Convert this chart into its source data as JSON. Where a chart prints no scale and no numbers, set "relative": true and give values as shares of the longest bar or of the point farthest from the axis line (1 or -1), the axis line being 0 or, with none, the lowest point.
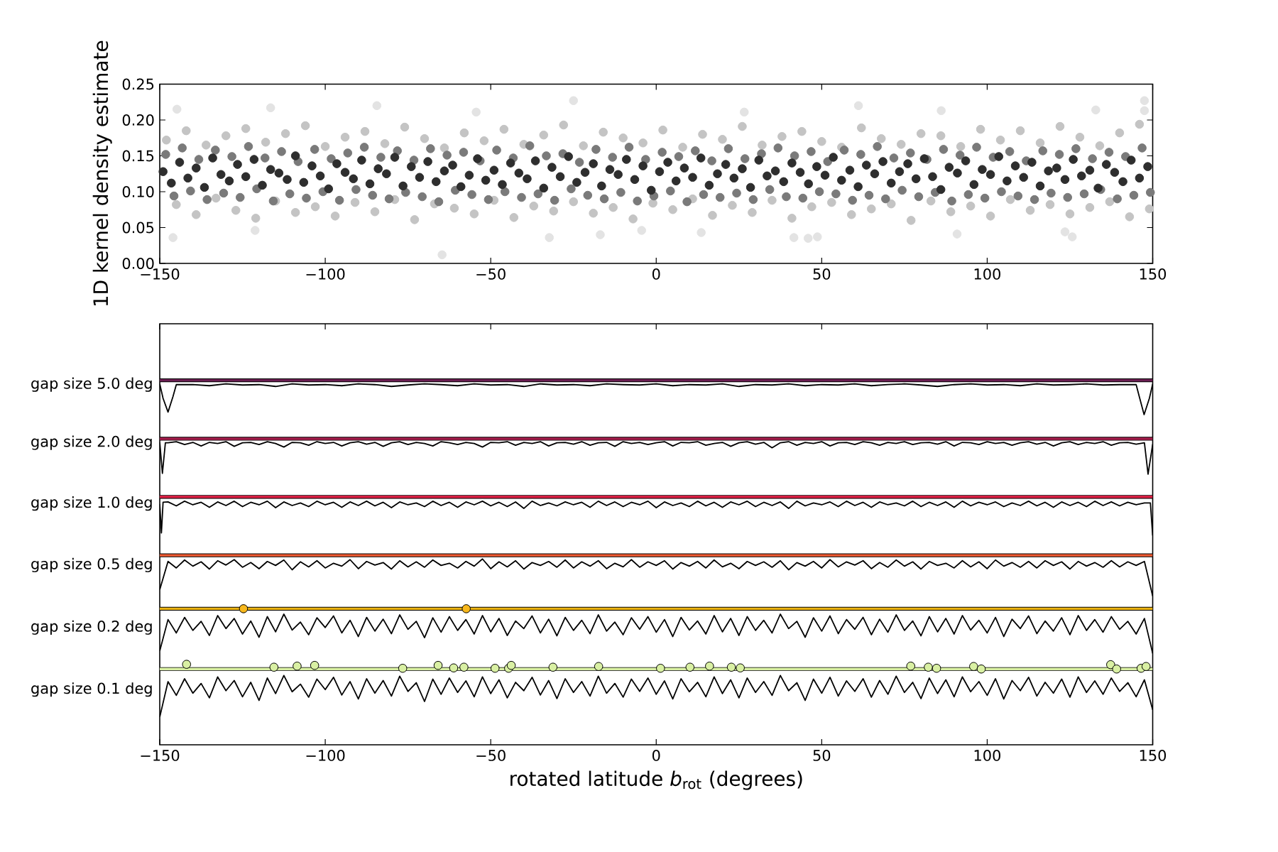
{
  "chart_data": [
    {
      "type": "scatter",
      "ylabel": "1D kernel density estimate",
      "xlim": [
        -150,
        150
      ],
      "xticks": [
        {
          "value": -150,
          "label": "−150"
        },
        {
          "value": -100,
          "label": "−100"
        },
        {
          "value": -50,
          "label": "−50"
        },
        0,
        50,
        100,
        150
      ],
      "ylim": [
        0,
        0.25
      ],
      "yticks": [
        {
          "value": 0,
          "label": "0.00"
        },
        {
          "value": 0.05,
          "label": "0.05"
        },
        {
          "value": 0.1,
          "label": "0.10"
        },
        {
          "value": 0.15,
          "label": "0.15"
        },
        {
          "value": 0.2,
          "label": "0.20"
        },
        {
          "value": 0.25,
          "label": "0.25"
        }
      ],
      "marker": "circle",
      "series": [
        {
          "color": "#e3e3e3",
          "x": [
            -144.8,
            -146,
            -116.5,
            -84.4,
            -64.7,
            -25,
            -32.3,
            -54.4,
            -121.2,
            -16.9,
            61.1,
            147.5,
            147.5,
            132.8,
            86.1,
            41.6,
            45.9,
            48.7,
            125.7,
            123.5,
            13.6,
            -4.4,
            26.6,
            90.9
          ],
          "values": [
            0.215,
            0.036,
            0.217,
            0.22,
            0.012,
            0.227,
            0.036,
            0.211,
            0.046,
            0.04,
            0.22,
            0.227,
            0.213,
            0.214,
            0.213,
            0.036,
            0.035,
            0.037,
            0.037,
            0.044,
            0.043,
            0.046,
            0.211,
            0.041
          ]
        },
        {
          "color": "#c4c4c4",
          "x": [
            -148,
            -145,
            -142,
            -139,
            -136,
            -133,
            -130,
            -127,
            -124,
            -121,
            -118,
            -115,
            -112,
            -109,
            -106,
            -103,
            -100,
            -97,
            -94,
            -91,
            -88,
            -85,
            -82,
            -79,
            -76,
            -73,
            -70,
            -67,
            -64,
            -61,
            -58,
            -55,
            -52,
            -49,
            -46,
            -43,
            -40,
            -37,
            -34,
            -31,
            -28,
            -25,
            -22,
            -19,
            -16,
            -13,
            -10,
            -7,
            -4,
            -1,
            2,
            5,
            8,
            11,
            14,
            17,
            20,
            23,
            26,
            29,
            32,
            35,
            38,
            41,
            44,
            47,
            50,
            53,
            56,
            59,
            62,
            65,
            68,
            71,
            74,
            77,
            80,
            83,
            86,
            89,
            92,
            95,
            98,
            101,
            104,
            107,
            110,
            113,
            116,
            119,
            122,
            125,
            128,
            131,
            134,
            137,
            140,
            143,
            146,
            149
          ],
          "values": [
            0.172,
            0.082,
            0.185,
            0.068,
            0.165,
            0.091,
            0.178,
            0.074,
            0.188,
            0.063,
            0.169,
            0.087,
            0.181,
            0.071,
            0.192,
            0.079,
            0.163,
            0.066,
            0.176,
            0.085,
            0.184,
            0.072,
            0.167,
            0.089,
            0.19,
            0.061,
            0.174,
            0.083,
            0.161,
            0.077,
            0.182,
            0.069,
            0.171,
            0.088,
            0.187,
            0.064,
            0.166,
            0.08,
            0.179,
            0.073,
            0.193,
            0.086,
            0.164,
            0.07,
            0.183,
            0.078,
            0.175,
            0.062,
            0.168,
            0.084,
            0.186,
            0.075,
            0.162,
            0.09,
            0.18,
            0.067,
            0.173,
            0.081,
            0.191,
            0.071,
            0.165,
            0.088,
            0.177,
            0.063,
            0.184,
            0.079,
            0.17,
            0.085,
            0.162,
            0.068,
            0.189,
            0.076,
            0.174,
            0.083,
            0.166,
            0.06,
            0.181,
            0.087,
            0.178,
            0.072,
            0.163,
            0.08,
            0.187,
            0.066,
            0.172,
            0.089,
            0.185,
            0.074,
            0.168,
            0.082,
            0.191,
            0.069,
            0.176,
            0.078,
            0.164,
            0.086,
            0.182,
            0.065,
            0.194,
            0.076
          ]
        },
        {
          "color": "#7a7a7a",
          "x": [
            -148.2,
            -145.7,
            -143.2,
            -140.7,
            -138.2,
            -135.7,
            -133.2,
            -130.7,
            -128.2,
            -125.7,
            -123.2,
            -120.7,
            -118.2,
            -115.7,
            -113.2,
            -110.7,
            -108.2,
            -105.7,
            -103.2,
            -100.7,
            -98.2,
            -95.7,
            -93.2,
            -90.7,
            -88.2,
            -85.7,
            -83.2,
            -80.7,
            -78.2,
            -75.7,
            -73.2,
            -70.7,
            -68.2,
            -65.7,
            -63.2,
            -60.7,
            -58.2,
            -55.7,
            -53.2,
            -50.7,
            -48.2,
            -45.7,
            -43.2,
            -40.7,
            -38.2,
            -35.7,
            -33.2,
            -30.7,
            -28.2,
            -25.7,
            -23.2,
            -20.7,
            -18.2,
            -15.7,
            -13.2,
            -10.7,
            -8.2,
            -5.7,
            -3.2,
            -0.7,
            1.8,
            4.3,
            6.8,
            9.3,
            11.8,
            14.3,
            16.8,
            19.3,
            21.8,
            24.3,
            26.8,
            29.3,
            31.8,
            34.3,
            36.8,
            39.3,
            41.8,
            44.3,
            46.8,
            49.3,
            51.8,
            54.3,
            56.8,
            59.3,
            61.8,
            64.3,
            66.8,
            69.3,
            71.8,
            74.3,
            76.8,
            79.3,
            81.8,
            84.3,
            86.8,
            89.3,
            91.8,
            94.3,
            96.8,
            99.3,
            101.8,
            104.3,
            106.8,
            109.3,
            111.8,
            114.3,
            116.8,
            119.3,
            121.8,
            124.3,
            126.8,
            129.3,
            131.8,
            134.3,
            136.8,
            139.3,
            141.8,
            144.3,
            146.8,
            149.3
          ],
          "values": [
            0.152,
            0.094,
            0.161,
            0.101,
            0.145,
            0.089,
            0.158,
            0.098,
            0.149,
            0.092,
            0.163,
            0.104,
            0.147,
            0.087,
            0.156,
            0.097,
            0.142,
            0.091,
            0.159,
            0.1,
            0.146,
            0.088,
            0.154,
            0.103,
            0.162,
            0.095,
            0.148,
            0.09,
            0.157,
            0.099,
            0.144,
            0.093,
            0.16,
            0.086,
            0.151,
            0.102,
            0.155,
            0.096,
            0.143,
            0.089,
            0.158,
            0.1,
            0.147,
            0.092,
            0.164,
            0.097,
            0.15,
            0.088,
            0.153,
            0.104,
            0.141,
            0.095,
            0.159,
            0.09,
            0.148,
            0.099,
            0.162,
            0.087,
            0.145,
            0.094,
            0.155,
            0.101,
            0.149,
            0.086,
            0.157,
            0.096,
            0.143,
            0.092,
            0.16,
            0.098,
            0.146,
            0.089,
            0.153,
            0.103,
            0.161,
            0.093,
            0.15,
            0.091,
            0.156,
            0.1,
            0.142,
            0.097,
            0.158,
            0.088,
            0.152,
            0.095,
            0.163,
            0.09,
            0.147,
            0.102,
            0.154,
            0.093,
            0.145,
            0.099,
            0.159,
            0.087,
            0.151,
            0.096,
            0.162,
            0.091,
            0.148,
            0.1,
            0.156,
            0.094,
            0.143,
            0.089,
            0.157,
            0.098,
            0.152,
            0.092,
            0.16,
            0.097,
            0.146,
            0.103,
            0.155,
            0.09,
            0.149,
            0.095,
            0.161,
            0.099
          ]
        },
        {
          "color": "#2e2e2e",
          "x": [
            -149,
            -146.5,
            -144,
            -141.5,
            -139,
            -136.5,
            -134,
            -131.5,
            -129,
            -126.5,
            -124,
            -121.5,
            -119,
            -116.5,
            -114,
            -111.5,
            -109,
            -106.5,
            -104,
            -101.5,
            -99,
            -96.5,
            -94,
            -91.5,
            -89,
            -86.5,
            -84,
            -81.5,
            -79,
            -76.5,
            -74,
            -71.5,
            -69,
            -66.5,
            -64,
            -61.5,
            -59,
            -56.5,
            -54,
            -51.5,
            -49,
            -46.5,
            -44,
            -41.5,
            -39,
            -36.5,
            -34,
            -31.5,
            -29,
            -26.5,
            -24,
            -21.5,
            -19,
            -16.5,
            -14,
            -11.5,
            -9,
            -6.5,
            -4,
            -1.5,
            1,
            3.5,
            6,
            8.5,
            11,
            13.5,
            16,
            18.5,
            21,
            23.5,
            26,
            28.5,
            31,
            33.5,
            36,
            38.5,
            41,
            43.5,
            46,
            48.5,
            51,
            53.5,
            56,
            58.5,
            61,
            63.5,
            66,
            68.5,
            71,
            73.5,
            76,
            78.5,
            81,
            83.5,
            86,
            88.5,
            91,
            93.5,
            96,
            98.5,
            101,
            103.5,
            106,
            108.5,
            111,
            113.5,
            116,
            118.5,
            121,
            123.5,
            126,
            128.5,
            131,
            133.5,
            136,
            138.5,
            141,
            143.5,
            146,
            148.5
          ],
          "values": [
            0.128,
            0.112,
            0.141,
            0.119,
            0.133,
            0.106,
            0.147,
            0.124,
            0.115,
            0.138,
            0.121,
            0.145,
            0.109,
            0.131,
            0.126,
            0.117,
            0.15,
            0.113,
            0.136,
            0.122,
            0.104,
            0.139,
            0.127,
            0.118,
            0.144,
            0.111,
            0.132,
            0.125,
            0.148,
            0.108,
            0.135,
            0.12,
            0.142,
            0.114,
            0.129,
            0.137,
            0.107,
            0.123,
            0.146,
            0.116,
            0.13,
            0.11,
            0.14,
            0.126,
            0.118,
            0.143,
            0.105,
            0.134,
            0.121,
            0.149,
            0.113,
            0.127,
            0.139,
            0.108,
            0.131,
            0.124,
            0.145,
            0.117,
            0.136,
            0.102,
            0.128,
            0.141,
            0.115,
            0.133,
            0.12,
            0.147,
            0.109,
            0.125,
            0.138,
            0.119,
            0.132,
            0.106,
            0.144,
            0.122,
            0.129,
            0.114,
            0.14,
            0.127,
            0.111,
            0.135,
            0.123,
            0.148,
            0.116,
            0.13,
            0.107,
            0.137,
            0.125,
            0.142,
            0.112,
            0.128,
            0.139,
            0.118,
            0.146,
            0.121,
            0.103,
            0.134,
            0.126,
            0.143,
            0.11,
            0.131,
            0.124,
            0.149,
            0.115,
            0.136,
            0.12,
            0.141,
            0.108,
            0.129,
            0.133,
            0.117,
            0.145,
            0.122,
            0.13,
            0.105,
            0.138,
            0.127,
            0.114,
            0.144,
            0.119,
            0.135
          ]
        }
      ]
    },
    {
      "type": "line",
      "relative": true,
      "xlabel": "rotated latitude *b*$_{rot}$ (degrees)",
      "xlim": [
        -150,
        150
      ],
      "xticks": [
        {
          "value": -150,
          "label": "−150"
        },
        {
          "value": -100,
          "label": "−100"
        },
        {
          "value": -50,
          "label": "−50"
        },
        0,
        50,
        100,
        150
      ],
      "line_style": "solid",
      "marker": "none",
      "x": [
        -150,
        -147.5,
        -145,
        -142.5,
        -140,
        -137.5,
        -135,
        -132.5,
        -130,
        -127.5,
        -125,
        -122.5,
        -120,
        -117.5,
        -115,
        -112.5,
        -110,
        -107.5,
        -105,
        -102.5,
        -100,
        -97.5,
        -95,
        -92.5,
        -90,
        -87.5,
        -85,
        -82.5,
        -80,
        -77.5,
        -75,
        -72.5,
        -70,
        -67.5,
        -65,
        -62.5,
        -60,
        -57.5,
        -55,
        -52.5,
        -50,
        -47.5,
        -45,
        -42.5,
        -40,
        -37.5,
        -35,
        -32.5,
        -30,
        -27.5,
        -25,
        -22.5,
        -20,
        -17.5,
        -15,
        -12.5,
        -10,
        -7.5,
        -5,
        -2.5,
        0,
        2.5,
        5,
        7.5,
        10,
        12.5,
        15,
        17.5,
        20,
        22.5,
        25,
        27.5,
        30,
        32.5,
        35,
        37.5,
        40,
        42.5,
        45,
        47.5,
        50,
        52.5,
        55,
        57.5,
        60,
        62.5,
        65,
        67.5,
        70,
        72.5,
        75,
        77.5,
        80,
        82.5,
        85,
        87.5,
        90,
        92.5,
        95,
        97.5,
        100,
        102.5,
        105,
        107.5,
        110,
        112.5,
        115,
        117.5,
        120,
        122.5,
        125,
        127.5,
        130,
        132.5,
        135,
        137.5,
        140,
        142.5,
        145,
        147.5,
        150
      ],
      "ref_lines": [
        {
          "axis": "y",
          "value": 1.01,
          "color": "#6b1f52"
        },
        {
          "axis": "y",
          "value": 0.848,
          "color": "#a31c4a"
        },
        {
          "axis": "y",
          "value": 0.687,
          "color": "#d81e42"
        },
        {
          "axis": "y",
          "value": 0.525,
          "color": "#ef5a32"
        },
        {
          "axis": "y",
          "value": 0.377,
          "color": "#ebb212"
        },
        {
          "axis": "y",
          "value": 0.21,
          "color": "#d9f0a3"
        }
      ],
      "series": [
        {
          "name": "gap size 5.0 deg",
          "color": "#000000",
          "x": [
            -150,
            -149,
            -147.5,
            -146,
            -145,
            -140,
            -135,
            -130,
            -125,
            -120,
            -115,
            -110,
            -105,
            -100,
            -95,
            -90,
            -85,
            -80,
            -75,
            -70,
            -65,
            -60,
            -55,
            -50,
            -45,
            -40,
            -35,
            -30,
            -25,
            -20,
            -15,
            -10,
            -5,
            0,
            5,
            10,
            15,
            20,
            25,
            30,
            35,
            40,
            45,
            50,
            55,
            60,
            65,
            70,
            75,
            80,
            85,
            90,
            95,
            100,
            105,
            110,
            115,
            120,
            125,
            130,
            135,
            140,
            145,
            146,
            147.4,
            149,
            150
          ],
          "values": [
            1.0,
            0.96,
            0.922,
            0.965,
            0.998,
            0.998,
            0.995,
            1.0,
            0.997,
            0.998,
            0.993,
            1.0,
            0.997,
            0.998,
            0.995,
            1.0,
            0.998,
            0.993,
            0.997,
            1.0,
            0.998,
            0.995,
            1.0,
            0.997,
            0.998,
            0.993,
            1.0,
            0.997,
            0.998,
            0.995,
            1.0,
            0.998,
            0.997,
            1.0,
            0.995,
            0.998,
            0.997,
            1.0,
            0.993,
            0.998,
            0.997,
            1.0,
            0.995,
            0.998,
            0.997,
            1.0,
            0.995,
            0.998,
            1.0,
            0.997,
            0.993,
            0.998,
            1.0,
            0.997,
            0.998,
            0.995,
            1.0,
            0.997,
            0.998,
            1.0,
            0.997,
            0.998,
            0.998,
            0.963,
            0.915,
            0.96,
            1.0
          ]
        },
        {
          "name": "gap size 2.0 deg",
          "color": "#000000",
          "x": [
            -150,
            -149.2,
            -148.3,
            -147.5,
            -145,
            -142.5,
            -140,
            -137.5,
            -135,
            -132.5,
            -130,
            -127.5,
            -125,
            -122.5,
            -120,
            -117.5,
            -115,
            -112.5,
            -110,
            -107.5,
            -105,
            -102.5,
            -100,
            -97.5,
            -95,
            -92.5,
            -90,
            -87.5,
            -85,
            -82.5,
            -80,
            -77.5,
            -75,
            -72.5,
            -70,
            -67.5,
            -65,
            -62.5,
            -60,
            -57.5,
            -55,
            -52.5,
            -50,
            -47.5,
            -45,
            -42.5,
            -40,
            -37.5,
            -35,
            -32.5,
            -30,
            -27.5,
            -25,
            -22.5,
            -20,
            -17.5,
            -15,
            -12.5,
            -10,
            -7.5,
            -5,
            -2.5,
            0,
            2.5,
            5,
            7.5,
            10,
            12.5,
            15,
            17.5,
            20,
            22.5,
            25,
            27.5,
            30,
            32.5,
            35,
            37.5,
            40,
            42.5,
            45,
            47.5,
            50,
            52.5,
            55,
            57.5,
            60,
            62.5,
            65,
            67.5,
            70,
            72.5,
            75,
            77.5,
            80,
            82.5,
            85,
            87.5,
            90,
            92.5,
            95,
            97.5,
            100,
            102.5,
            105,
            107.5,
            110,
            112.5,
            115,
            117.5,
            120,
            122.5,
            125,
            127.5,
            130,
            132.5,
            135,
            137.5,
            140,
            142.5,
            145,
            147.5,
            148.6,
            150
          ],
          "values": [
            0.838,
            0.752,
            0.837,
            0.837,
            0.84,
            0.832,
            0.838,
            0.828,
            0.838,
            0.835,
            0.84,
            0.827,
            0.837,
            0.838,
            0.832,
            0.84,
            0.835,
            0.825,
            0.838,
            0.837,
            0.83,
            0.84,
            0.835,
            0.838,
            0.828,
            0.837,
            0.84,
            0.833,
            0.838,
            0.827,
            0.837,
            0.84,
            0.832,
            0.838,
            0.835,
            0.828,
            0.84,
            0.837,
            0.832,
            0.838,
            0.835,
            0.825,
            0.838,
            0.837,
            0.84,
            0.83,
            0.838,
            0.835,
            0.84,
            0.828,
            0.837,
            0.838,
            0.833,
            0.84,
            0.83,
            0.837,
            0.838,
            0.827,
            0.84,
            0.835,
            0.838,
            0.832,
            0.837,
            0.84,
            0.828,
            0.838,
            0.837,
            0.84,
            0.83,
            0.835,
            0.838,
            0.827,
            0.837,
            0.84,
            0.833,
            0.838,
            0.823,
            0.837,
            0.84,
            0.83,
            0.838,
            0.835,
            0.84,
            0.828,
            0.837,
            0.838,
            0.832,
            0.84,
            0.837,
            0.83,
            0.838,
            0.835,
            0.84,
            0.832,
            0.837,
            0.838,
            0.833,
            0.84,
            0.828,
            0.838,
            0.837,
            0.832,
            0.84,
            0.835,
            0.838,
            0.83,
            0.837,
            0.84,
            0.833,
            0.838,
            0.828,
            0.837,
            0.84,
            0.832,
            0.838,
            0.835,
            0.84,
            0.83,
            0.837,
            0.838,
            0.833,
            0.837,
            0.75,
            0.833
          ]
        },
        {
          "name": "gap size 1.0 deg",
          "color": "#000000",
          "x": [
            -150,
            -149.5,
            -149,
            -147.5,
            -145,
            -142.5,
            -140,
            -137.5,
            -135,
            -132.5,
            -130,
            -127.5,
            -125,
            -122.5,
            -120,
            -117.5,
            -115,
            -112.5,
            -110,
            -107.5,
            -105,
            -102.5,
            -100,
            -97.5,
            -95,
            -92.5,
            -90,
            -87.5,
            -85,
            -82.5,
            -80,
            -77.5,
            -75,
            -72.5,
            -70,
            -67.5,
            -65,
            -62.5,
            -60,
            -57.5,
            -55,
            -52.5,
            -50,
            -47.5,
            -45,
            -42.5,
            -40,
            -37.5,
            -35,
            -32.5,
            -30,
            -27.5,
            -25,
            -22.5,
            -20,
            -17.5,
            -15,
            -12.5,
            -10,
            -7.5,
            -5,
            -2.5,
            0,
            2.5,
            5,
            7.5,
            10,
            12.5,
            15,
            17.5,
            20,
            22.5,
            25,
            27.5,
            30,
            32.5,
            35,
            37.5,
            40,
            42.5,
            45,
            47.5,
            50,
            52.5,
            55,
            57.5,
            60,
            62.5,
            65,
            67.5,
            70,
            72.5,
            75,
            77.5,
            80,
            82.5,
            85,
            87.5,
            90,
            92.5,
            95,
            97.5,
            100,
            102.5,
            105,
            107.5,
            110,
            112.5,
            115,
            117.5,
            120,
            122.5,
            125,
            127.5,
            130,
            132.5,
            135,
            137.5,
            140,
            142.5,
            145,
            147.5,
            149.3,
            150
          ],
          "values": [
            0.667,
            0.587,
            0.672,
            0.673,
            0.662,
            0.675,
            0.665,
            0.672,
            0.658,
            0.673,
            0.663,
            0.675,
            0.66,
            0.672,
            0.665,
            0.675,
            0.657,
            0.673,
            0.663,
            0.67,
            0.66,
            0.675,
            0.665,
            0.672,
            0.658,
            0.673,
            0.663,
            0.675,
            0.662,
            0.672,
            0.657,
            0.673,
            0.665,
            0.67,
            0.66,
            0.675,
            0.663,
            0.672,
            0.658,
            0.673,
            0.665,
            0.675,
            0.662,
            0.672,
            0.66,
            0.673,
            0.655,
            0.675,
            0.663,
            0.67,
            0.662,
            0.673,
            0.665,
            0.672,
            0.658,
            0.675,
            0.663,
            0.673,
            0.66,
            0.672,
            0.665,
            0.675,
            0.657,
            0.673,
            0.663,
            0.67,
            0.66,
            0.675,
            0.662,
            0.672,
            0.658,
            0.673,
            0.665,
            0.675,
            0.66,
            0.672,
            0.663,
            0.673,
            0.655,
            0.675,
            0.662,
            0.67,
            0.665,
            0.673,
            0.66,
            0.675,
            0.663,
            0.672,
            0.658,
            0.673,
            0.665,
            0.67,
            0.662,
            0.675,
            0.66,
            0.672,
            0.663,
            0.673,
            0.658,
            0.675,
            0.662,
            0.672,
            0.665,
            0.673,
            0.66,
            0.67,
            0.663,
            0.675,
            0.662,
            0.672,
            0.658,
            0.673,
            0.663,
            0.672,
            0.66,
            0.675,
            0.663,
            0.673,
            0.662,
            0.672,
            0.665,
            0.67,
            0.67,
            0.58
          ]
        },
        {
          "name": "gap size 0.5 deg",
          "color": "#000000",
          "values": [
            0.43,
            0.508,
            0.49,
            0.512,
            0.495,
            0.507,
            0.487,
            0.51,
            0.498,
            0.513,
            0.492,
            0.505,
            0.488,
            0.508,
            0.497,
            0.512,
            0.485,
            0.507,
            0.493,
            0.51,
            0.49,
            0.503,
            0.495,
            0.513,
            0.488,
            0.508,
            0.498,
            0.505,
            0.487,
            0.51,
            0.493,
            0.507,
            0.492,
            0.512,
            0.497,
            0.503,
            0.49,
            0.508,
            0.495,
            0.515,
            0.488,
            0.507,
            0.493,
            0.51,
            0.487,
            0.505,
            0.497,
            0.508,
            0.492,
            0.512,
            0.49,
            0.507,
            0.495,
            0.51,
            0.488,
            0.503,
            0.493,
            0.513,
            0.492,
            0.507,
            0.497,
            0.51,
            0.487,
            0.505,
            0.495,
            0.508,
            0.49,
            0.512,
            0.493,
            0.503,
            0.488,
            0.508,
            0.497,
            0.507,
            0.492,
            0.51,
            0.485,
            0.505,
            0.495,
            0.508,
            0.49,
            0.513,
            0.493,
            0.507,
            0.498,
            0.51,
            0.488,
            0.505,
            0.492,
            0.512,
            0.495,
            0.507,
            0.487,
            0.508,
            0.497,
            0.503,
            0.49,
            0.51,
            0.493,
            0.507,
            0.488,
            0.512,
            0.495,
            0.505,
            0.492,
            0.508,
            0.49,
            0.51,
            0.497,
            0.507,
            0.487,
            0.508,
            0.495,
            0.505,
            0.492,
            0.51,
            0.493,
            0.507,
            0.497,
            0.508,
            0.412
          ]
        },
        {
          "name": "gap size 0.2 deg",
          "color": "#000000",
          "values": [
            0.26,
            0.347,
            0.31,
            0.353,
            0.317,
            0.342,
            0.303,
            0.358,
            0.322,
            0.35,
            0.307,
            0.343,
            0.298,
            0.355,
            0.313,
            0.362,
            0.318,
            0.34,
            0.305,
            0.352,
            0.325,
            0.357,
            0.31,
            0.345,
            0.3,
            0.353,
            0.315,
            0.348,
            0.308,
            0.36,
            0.32,
            0.342,
            0.297,
            0.352,
            0.312,
            0.355,
            0.317,
            0.347,
            0.307,
            0.358,
            0.313,
            0.35,
            0.303,
            0.343,
            0.322,
            0.357,
            0.31,
            0.348,
            0.302,
            0.353,
            0.317,
            0.345,
            0.308,
            0.36,
            0.315,
            0.34,
            0.305,
            0.352,
            0.32,
            0.355,
            0.312,
            0.347,
            0.3,
            0.353,
            0.318,
            0.343,
            0.307,
            0.358,
            0.313,
            0.35,
            0.303,
            0.355,
            0.317,
            0.345,
            0.31,
            0.362,
            0.322,
            0.342,
            0.298,
            0.352,
            0.315,
            0.357,
            0.308,
            0.347,
            0.32,
            0.353,
            0.305,
            0.348,
            0.312,
            0.36,
            0.317,
            0.343,
            0.302,
            0.355,
            0.313,
            0.35,
            0.307,
            0.358,
            0.318,
            0.345,
            0.31,
            0.353,
            0.3,
            0.348,
            0.322,
            0.357,
            0.308,
            0.343,
            0.315,
            0.352,
            0.305,
            0.358,
            0.317,
            0.347,
            0.312,
            0.355,
            0.32,
            0.342,
            0.307,
            0.35,
            0.253
          ]
        },
        {
          "name": "gap size 0.1 deg",
          "color": "#000000",
          "values": [
            0.077,
            0.175,
            0.137,
            0.183,
            0.143,
            0.17,
            0.13,
            0.188,
            0.15,
            0.178,
            0.133,
            0.173,
            0.123,
            0.185,
            0.142,
            0.192,
            0.147,
            0.168,
            0.132,
            0.182,
            0.153,
            0.187,
            0.138,
            0.175,
            0.127,
            0.183,
            0.143,
            0.178,
            0.135,
            0.19,
            0.148,
            0.172,
            0.12,
            0.182,
            0.14,
            0.185,
            0.145,
            0.177,
            0.133,
            0.188,
            0.142,
            0.18,
            0.13,
            0.173,
            0.15,
            0.187,
            0.138,
            0.178,
            0.128,
            0.183,
            0.145,
            0.175,
            0.135,
            0.19,
            0.143,
            0.17,
            0.132,
            0.182,
            0.148,
            0.185,
            0.14,
            0.177,
            0.127,
            0.183,
            0.147,
            0.173,
            0.133,
            0.188,
            0.142,
            0.18,
            0.13,
            0.185,
            0.145,
            0.175,
            0.137,
            0.192,
            0.15,
            0.172,
            0.123,
            0.182,
            0.143,
            0.187,
            0.135,
            0.177,
            0.148,
            0.183,
            0.132,
            0.178,
            0.14,
            0.19,
            0.145,
            0.173,
            0.128,
            0.185,
            0.142,
            0.18,
            0.133,
            0.188,
            0.147,
            0.175,
            0.137,
            0.183,
            0.127,
            0.178,
            0.15,
            0.187,
            0.135,
            0.173,
            0.143,
            0.182,
            0.132,
            0.188,
            0.145,
            0.177,
            0.14,
            0.185,
            0.148,
            0.172,
            0.133,
            0.18,
            0.097
          ]
        },
        {
          "type": "scatter",
          "marker": "circle",
          "color": "#f8b81c",
          "x": [
            -124.7,
            -57.4
          ],
          "values": [
            0.377,
            0.377
          ]
        },
        {
          "type": "scatter",
          "marker": "circle",
          "color": "#d9f0a3",
          "x": [
            -141.9,
            -115.5,
            -108.5,
            -103.2,
            -76.6,
            -65.9,
            -61.2,
            -58.1,
            -48.7,
            -44.6,
            -43.8,
            -31.2,
            -17.4,
            1.3,
            10.2,
            16.1,
            22.7,
            25.4,
            76.9,
            82.2,
            84.7,
            95.9,
            98.2,
            137.3,
            139.1,
            146.5,
            148.0
          ],
          "values": [
            0.223,
            0.215,
            0.218,
            0.22,
            0.212,
            0.22,
            0.213,
            0.215,
            0.212,
            0.212,
            0.22,
            0.215,
            0.217,
            0.212,
            0.215,
            0.218,
            0.215,
            0.213,
            0.218,
            0.215,
            0.212,
            0.217,
            0.21,
            0.222,
            0.21,
            0.212,
            0.217
          ]
        }
      ]
    }
  ]
}
